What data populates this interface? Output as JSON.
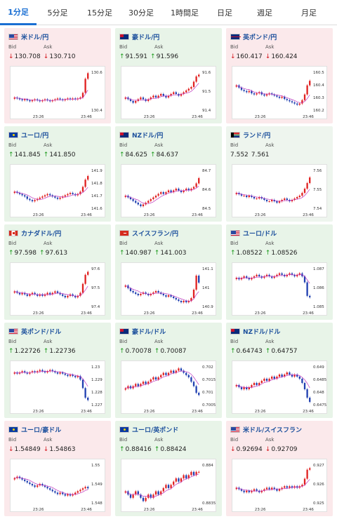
{
  "tabs": [
    {
      "label": "1分足",
      "active": true
    },
    {
      "label": "5分足",
      "active": false
    },
    {
      "label": "15分足",
      "active": false
    },
    {
      "label": "30分足",
      "active": false
    },
    {
      "label": "1時間足",
      "active": false
    },
    {
      "label": "日足",
      "active": false
    },
    {
      "label": "週足",
      "active": false
    },
    {
      "label": "月足",
      "active": false
    }
  ],
  "labels": {
    "bid": "Bid",
    "ask": "Ask"
  },
  "colors": {
    "up": "#1a9a1a",
    "down": "#d4151b",
    "candle_up": "#e02020",
    "candle_down": "#1f3fb0",
    "ma": "#c038c0",
    "tab_active": "#1a6fd3"
  },
  "cards": [
    {
      "pair": "米ドル/円",
      "flag": "us",
      "tone": "down",
      "bid": "130.708",
      "ask": "130.710",
      "bid_dir": "down",
      "ask_dir": "down",
      "chart": {
        "x_ticks": [
          "23:26",
          "23:46"
        ],
        "y_ticks": [
          "130.6",
          "130.4"
        ],
        "ylim": [
          130.3,
          130.75
        ],
        "trend": [
          130.45,
          130.44,
          130.43,
          130.42,
          130.43,
          130.42,
          130.41,
          130.42,
          130.43,
          130.42,
          130.41,
          130.42,
          130.43,
          130.42,
          130.41,
          130.42,
          130.43,
          130.44,
          130.43,
          130.42,
          130.43,
          130.44,
          130.43,
          130.44,
          130.43,
          130.44,
          130.45,
          130.5,
          130.65,
          130.71
        ]
      }
    },
    {
      "pair": "豪ドル/円",
      "flag": "au",
      "tone": "up",
      "bid": "91.591",
      "ask": "91.596",
      "bid_dir": "up",
      "ask_dir": "up",
      "chart": {
        "x_ticks": [
          "23:26",
          "23:46"
        ],
        "y_ticks": [
          "91.6",
          "91.5",
          "91.4"
        ],
        "ylim": [
          91.38,
          91.62
        ],
        "trend": [
          91.46,
          91.45,
          91.44,
          91.43,
          91.44,
          91.45,
          91.46,
          91.45,
          91.44,
          91.45,
          91.46,
          91.47,
          91.46,
          91.47,
          91.48,
          91.47,
          91.46,
          91.47,
          91.48,
          91.49,
          91.48,
          91.47,
          91.48,
          91.49,
          91.5,
          91.51,
          91.52,
          91.55,
          91.58,
          91.59
        ]
      }
    },
    {
      "pair": "英ポンド/円",
      "flag": "gb",
      "tone": "down",
      "bid": "160.417",
      "ask": "160.424",
      "bid_dir": "down",
      "ask_dir": "down",
      "chart": {
        "x_ticks": [
          "23:26",
          "23:46"
        ],
        "y_ticks": [
          "160.5",
          "160.4",
          "160.3",
          "160.2"
        ],
        "ylim": [
          160.15,
          160.52
        ],
        "trend": [
          160.38,
          160.36,
          160.34,
          160.33,
          160.32,
          160.33,
          160.31,
          160.3,
          160.31,
          160.32,
          160.3,
          160.29,
          160.3,
          160.31,
          160.3,
          160.29,
          160.28,
          160.27,
          160.28,
          160.26,
          160.25,
          160.24,
          160.23,
          160.22,
          160.21,
          160.22,
          160.25,
          160.3,
          160.38,
          160.42
        ]
      }
    },
    {
      "pair": "ユーロ/円",
      "flag": "eu",
      "tone": "up",
      "bid": "141.845",
      "ask": "141.850",
      "bid_dir": "up",
      "ask_dir": "up",
      "chart": {
        "x_ticks": [
          "23:26",
          "23:46"
        ],
        "y_ticks": [
          "141.9",
          "141.8",
          "141.7",
          "141.6"
        ],
        "ylim": [
          141.57,
          141.92
        ],
        "trend": [
          141.72,
          141.71,
          141.7,
          141.69,
          141.68,
          141.66,
          141.65,
          141.64,
          141.65,
          141.66,
          141.67,
          141.68,
          141.69,
          141.7,
          141.69,
          141.68,
          141.67,
          141.66,
          141.67,
          141.68,
          141.69,
          141.7,
          141.71,
          141.7,
          141.69,
          141.7,
          141.72,
          141.76,
          141.82,
          141.85
        ]
      }
    },
    {
      "pair": "NZドル/円",
      "flag": "nz",
      "tone": "up",
      "bid": "84.625",
      "ask": "84.637",
      "bid_dir": "up",
      "ask_dir": "up",
      "chart": {
        "x_ticks": [
          "23:26",
          "23:46"
        ],
        "y_ticks": [
          "84.7",
          "84.6",
          "84.5"
        ],
        "ylim": [
          84.48,
          84.72
        ],
        "trend": [
          84.56,
          84.55,
          84.54,
          84.53,
          84.52,
          84.51,
          84.5,
          84.51,
          84.52,
          84.53,
          84.54,
          84.55,
          84.56,
          84.57,
          84.58,
          84.57,
          84.58,
          84.59,
          84.58,
          84.59,
          84.6,
          84.59,
          84.58,
          84.59,
          84.6,
          84.59,
          84.6,
          84.61,
          84.63,
          84.66
        ]
      }
    },
    {
      "pair": "ランド/円",
      "flag": "za",
      "tone": "neutral",
      "bid": "7.552",
      "ask": "7.561",
      "bid_dir": "none",
      "ask_dir": "none",
      "chart": {
        "x_ticks": [
          "23:26",
          "23:46"
        ],
        "y_ticks": [
          "7.56",
          "7.55",
          "7.54"
        ],
        "ylim": [
          7.535,
          7.565
        ],
        "trend": [
          7.547,
          7.546,
          7.545,
          7.545,
          7.544,
          7.545,
          7.544,
          7.543,
          7.543,
          7.544,
          7.543,
          7.542,
          7.541,
          7.541,
          7.542,
          7.541,
          7.54,
          7.541,
          7.542,
          7.543,
          7.542,
          7.541,
          7.542,
          7.543,
          7.544,
          7.545,
          7.547,
          7.55,
          7.554,
          7.558
        ]
      }
    },
    {
      "pair": "カナダドル/円",
      "flag": "ca",
      "tone": "up",
      "bid": "97.598",
      "ask": "97.613",
      "bid_dir": "up",
      "ask_dir": "up",
      "chart": {
        "x_ticks": [
          "23:26",
          "23:46"
        ],
        "y_ticks": [
          "97.6",
          "97.5",
          "97.4"
        ],
        "ylim": [
          97.36,
          97.64
        ],
        "trend": [
          97.47,
          97.46,
          97.45,
          97.46,
          97.45,
          97.44,
          97.45,
          97.46,
          97.45,
          97.44,
          97.45,
          97.44,
          97.45,
          97.46,
          97.45,
          97.46,
          97.47,
          97.46,
          97.45,
          97.44,
          97.43,
          97.44,
          97.45,
          97.44,
          97.43,
          97.44,
          97.46,
          97.52,
          97.58,
          97.6
        ]
      }
    },
    {
      "pair": "スイスフラン/円",
      "flag": "ch",
      "tone": "up",
      "bid": "140.987",
      "ask": "141.003",
      "bid_dir": "up",
      "ask_dir": "up",
      "chart": {
        "x_ticks": [
          "23:26",
          "23:46"
        ],
        "y_ticks": [
          "141.1",
          "141",
          "140.9"
        ],
        "ylim": [
          140.82,
          141.12
        ],
        "trend": [
          140.98,
          140.96,
          140.94,
          140.93,
          140.92,
          140.91,
          140.92,
          140.93,
          140.92,
          140.91,
          140.92,
          140.93,
          140.94,
          140.93,
          140.92,
          140.91,
          140.9,
          140.91,
          140.9,
          140.89,
          140.88,
          140.87,
          140.86,
          140.87,
          140.86,
          140.87,
          140.89,
          140.95,
          141.05,
          141.0
        ]
      }
    },
    {
      "pair": "ユーロ/ドル",
      "flag": "us",
      "tone": "up",
      "bid": "1.08522",
      "ask": "1.08526",
      "bid_dir": "up",
      "ask_dir": "up",
      "chart": {
        "x_ticks": [
          "23:26",
          "23:46"
        ],
        "y_ticks": [
          "1.087",
          "1.086",
          "1.085"
        ],
        "ylim": [
          1.0845,
          1.0873
        ],
        "trend": [
          1.0865,
          1.0864,
          1.0865,
          1.0866,
          1.0865,
          1.0864,
          1.0865,
          1.0866,
          1.0867,
          1.0866,
          1.0865,
          1.0866,
          1.0867,
          1.0866,
          1.0865,
          1.0866,
          1.0867,
          1.0868,
          1.0867,
          1.0866,
          1.0867,
          1.0868,
          1.0867,
          1.0866,
          1.0867,
          1.0868,
          1.0866,
          1.0862,
          1.0853,
          1.0852
        ]
      }
    },
    {
      "pair": "英ポンド/ドル",
      "flag": "us",
      "tone": "up",
      "bid": "1.22726",
      "ask": "1.22736",
      "bid_dir": "up",
      "ask_dir": "up",
      "chart": {
        "x_ticks": [
          "23:26",
          "23:46"
        ],
        "y_ticks": [
          "1.23",
          "1.229",
          "1.228",
          "1.227"
        ],
        "ylim": [
          1.2268,
          1.2303
        ],
        "trend": [
          1.2296,
          1.2295,
          1.2296,
          1.2297,
          1.2296,
          1.2295,
          1.2296,
          1.2297,
          1.2296,
          1.2297,
          1.2298,
          1.2297,
          1.2296,
          1.2297,
          1.2298,
          1.2297,
          1.2296,
          1.2295,
          1.2296,
          1.2295,
          1.2294,
          1.2293,
          1.2294,
          1.2293,
          1.2292,
          1.2293,
          1.229,
          1.2283,
          1.2275,
          1.2273
        ]
      }
    },
    {
      "pair": "豪ドル/ドル",
      "flag": "au",
      "tone": "up",
      "bid": "0.70078",
      "ask": "0.70087",
      "bid_dir": "up",
      "ask_dir": "up",
      "chart": {
        "x_ticks": [
          "23:26",
          "23:46"
        ],
        "y_ticks": [
          "0.702",
          "0.7015",
          "0.701",
          "0.7005"
        ],
        "ylim": [
          0.7003,
          0.7022
        ],
        "trend": [
          0.7011,
          0.7012,
          0.7011,
          0.7012,
          0.7013,
          0.7012,
          0.7013,
          0.7014,
          0.7013,
          0.7014,
          0.7015,
          0.7016,
          0.7015,
          0.7016,
          0.7017,
          0.7018,
          0.7017,
          0.7018,
          0.7019,
          0.7018,
          0.7019,
          0.702,
          0.7019,
          0.7018,
          0.7017,
          0.7016,
          0.7014,
          0.7012,
          0.7009,
          0.7008
        ]
      }
    },
    {
      "pair": "NZドル/ドル",
      "flag": "nz",
      "tone": "up",
      "bid": "0.64743",
      "ask": "0.64757",
      "bid_dir": "up",
      "ask_dir": "up",
      "chart": {
        "x_ticks": [
          "23:26",
          "23:46"
        ],
        "y_ticks": [
          "0.649",
          "0.6485",
          "0.648",
          "0.6475"
        ],
        "ylim": [
          0.6472,
          0.6492
        ],
        "trend": [
          0.6482,
          0.6481,
          0.648,
          0.6481,
          0.648,
          0.6481,
          0.6482,
          0.6483,
          0.6482,
          0.6483,
          0.6484,
          0.6485,
          0.6484,
          0.6485,
          0.6486,
          0.6485,
          0.6486,
          0.6487,
          0.6486,
          0.6487,
          0.6488,
          0.6487,
          0.6486,
          0.6487,
          0.6486,
          0.6485,
          0.6483,
          0.648,
          0.6476,
          0.6474
        ]
      }
    },
    {
      "pair": "ユーロ/豪ドル",
      "flag": "eu",
      "tone": "down",
      "bid": "1.54849",
      "ask": "1.54863",
      "bid_dir": "down",
      "ask_dir": "down",
      "chart": {
        "x_ticks": [
          "23:26",
          "23:46"
        ],
        "y_ticks": [
          "1.55",
          "1.549",
          "1.548"
        ],
        "ylim": [
          1.5474,
          1.5503
        ],
        "trend": [
          1.5492,
          1.5493,
          1.5492,
          1.5491,
          1.549,
          1.5489,
          1.5488,
          1.5487,
          1.5486,
          1.5487,
          1.5488,
          1.5487,
          1.5486,
          1.5485,
          1.5484,
          1.5483,
          1.5482,
          1.5481,
          1.5482,
          1.5481,
          1.548,
          1.5481,
          1.548,
          1.5481,
          1.5482,
          1.5483,
          1.5484,
          1.5485,
          1.5486,
          1.5485
        ]
      }
    },
    {
      "pair": "ユーロ/英ポンド",
      "flag": "eu",
      "tone": "up",
      "bid": "0.88416",
      "ask": "0.88424",
      "bid_dir": "up",
      "ask_dir": "up",
      "chart": {
        "x_ticks": [
          "23:26",
          "23:46"
        ],
        "y_ticks": [
          "0.884",
          "0.8835"
        ],
        "ylim": [
          0.8832,
          0.8845
        ],
        "trend": [
          0.8836,
          0.8835,
          0.8834,
          0.8835,
          0.8836,
          0.8835,
          0.8834,
          0.8833,
          0.8834,
          0.8835,
          0.8834,
          0.8835,
          0.8836,
          0.8835,
          0.8836,
          0.8837,
          0.8838,
          0.8837,
          0.8838,
          0.8839,
          0.884,
          0.8839,
          0.884,
          0.8841,
          0.884,
          0.8841,
          0.8842,
          0.8841,
          0.8842,
          0.8842
        ]
      }
    },
    {
      "pair": "米ドル/スイスフラン",
      "flag": "us",
      "tone": "down",
      "bid": "0.92694",
      "ask": "0.92709",
      "bid_dir": "down",
      "ask_dir": "down",
      "chart": {
        "x_ticks": [
          "23:26",
          "23:46"
        ],
        "y_ticks": [
          "0.927",
          "0.926",
          "0.925"
        ],
        "ylim": [
          0.9245,
          0.9273
        ],
        "trend": [
          0.9256,
          0.9255,
          0.9254,
          0.9253,
          0.9254,
          0.9253,
          0.9254,
          0.9255,
          0.9254,
          0.9253,
          0.9254,
          0.9255,
          0.9256,
          0.9255,
          0.9256,
          0.9255,
          0.9254,
          0.9255,
          0.9256,
          0.9257,
          0.9256,
          0.9257,
          0.9256,
          0.9257,
          0.9256,
          0.9257,
          0.9258,
          0.9262,
          0.9268,
          0.9269
        ]
      }
    }
  ]
}
